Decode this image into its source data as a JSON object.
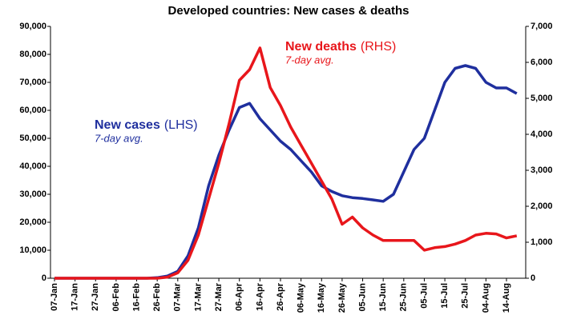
{
  "chart_data": {
    "type": "line",
    "title": "Developed countries: New cases & deaths",
    "categories": [
      "07-Jan",
      null,
      "17-Jan",
      null,
      "27-Jan",
      null,
      "06-Feb",
      null,
      "16-Feb",
      null,
      "26-Feb",
      null,
      "07-Mar",
      null,
      "17-Mar",
      null,
      "27-Mar",
      null,
      "06-Apr",
      null,
      "16-Apr",
      null,
      "26-Apr",
      null,
      "06-May",
      null,
      "16-May",
      null,
      "26-May",
      null,
      "05-Jun",
      null,
      "15-Jun",
      null,
      "25-Jun",
      null,
      "05-Jul",
      null,
      "15-Jul",
      null,
      "25-Jul",
      null,
      "04-Aug",
      null,
      "14-Aug",
      null
    ],
    "series": [
      {
        "name": "New cases",
        "axis_note": "(LHS)",
        "subnote": "7-day avg.",
        "color": "#1f2f9e",
        "axis": "y",
        "values": [
          0,
          0,
          0,
          0,
          0,
          0,
          0,
          0,
          0,
          0,
          200,
          800,
          2500,
          8000,
          18000,
          33000,
          44000,
          53000,
          61000,
          62500,
          57000,
          53000,
          49000,
          46000,
          42000,
          38000,
          33000,
          31000,
          29500,
          28800,
          28500,
          28000,
          27500,
          30000,
          38000,
          46000,
          50000,
          60000,
          70000,
          75000,
          76000,
          75000,
          70000,
          68000,
          68000,
          66000
        ]
      },
      {
        "name": "New deaths",
        "axis_note": "(RHS)",
        "subnote": "7-day avg.",
        "color": "#e8161b",
        "axis": "y2",
        "values": [
          0,
          0,
          0,
          0,
          0,
          0,
          0,
          0,
          0,
          0,
          0,
          30,
          150,
          500,
          1200,
          2200,
          3200,
          4300,
          5500,
          5800,
          6400,
          5300,
          4800,
          4200,
          3700,
          3200,
          2700,
          2200,
          1500,
          1700,
          1400,
          1200,
          1050,
          1050,
          1050,
          1050,
          780,
          850,
          880,
          950,
          1050,
          1200,
          1250,
          1230,
          1120,
          1180
        ]
      }
    ],
    "ylim": [
      0,
      90000
    ],
    "yticks": [
      0,
      {
        "value": 10000,
        "label": "10,000"
      },
      {
        "value": 20000,
        "label": "20,000"
      },
      {
        "value": 30000,
        "label": "30,000"
      },
      {
        "value": 40000,
        "label": "40,000"
      },
      {
        "value": 50000,
        "label": "50,000"
      },
      {
        "value": 60000,
        "label": "60,000"
      },
      {
        "value": 70000,
        "label": "70,000"
      },
      {
        "value": 80000,
        "label": "80,000"
      },
      {
        "value": 90000,
        "label": "90,000"
      }
    ],
    "y2lim": [
      0,
      7000
    ],
    "y2ticks": [
      0,
      {
        "value": 1000,
        "label": "1,000"
      },
      {
        "value": 2000,
        "label": "2,000"
      },
      {
        "value": 3000,
        "label": "3,000"
      },
      {
        "value": 4000,
        "label": "4,000"
      },
      {
        "value": 5000,
        "label": "5,000"
      },
      {
        "value": 6000,
        "label": "6,000"
      },
      {
        "value": 7000,
        "label": "7,000"
      }
    ]
  }
}
